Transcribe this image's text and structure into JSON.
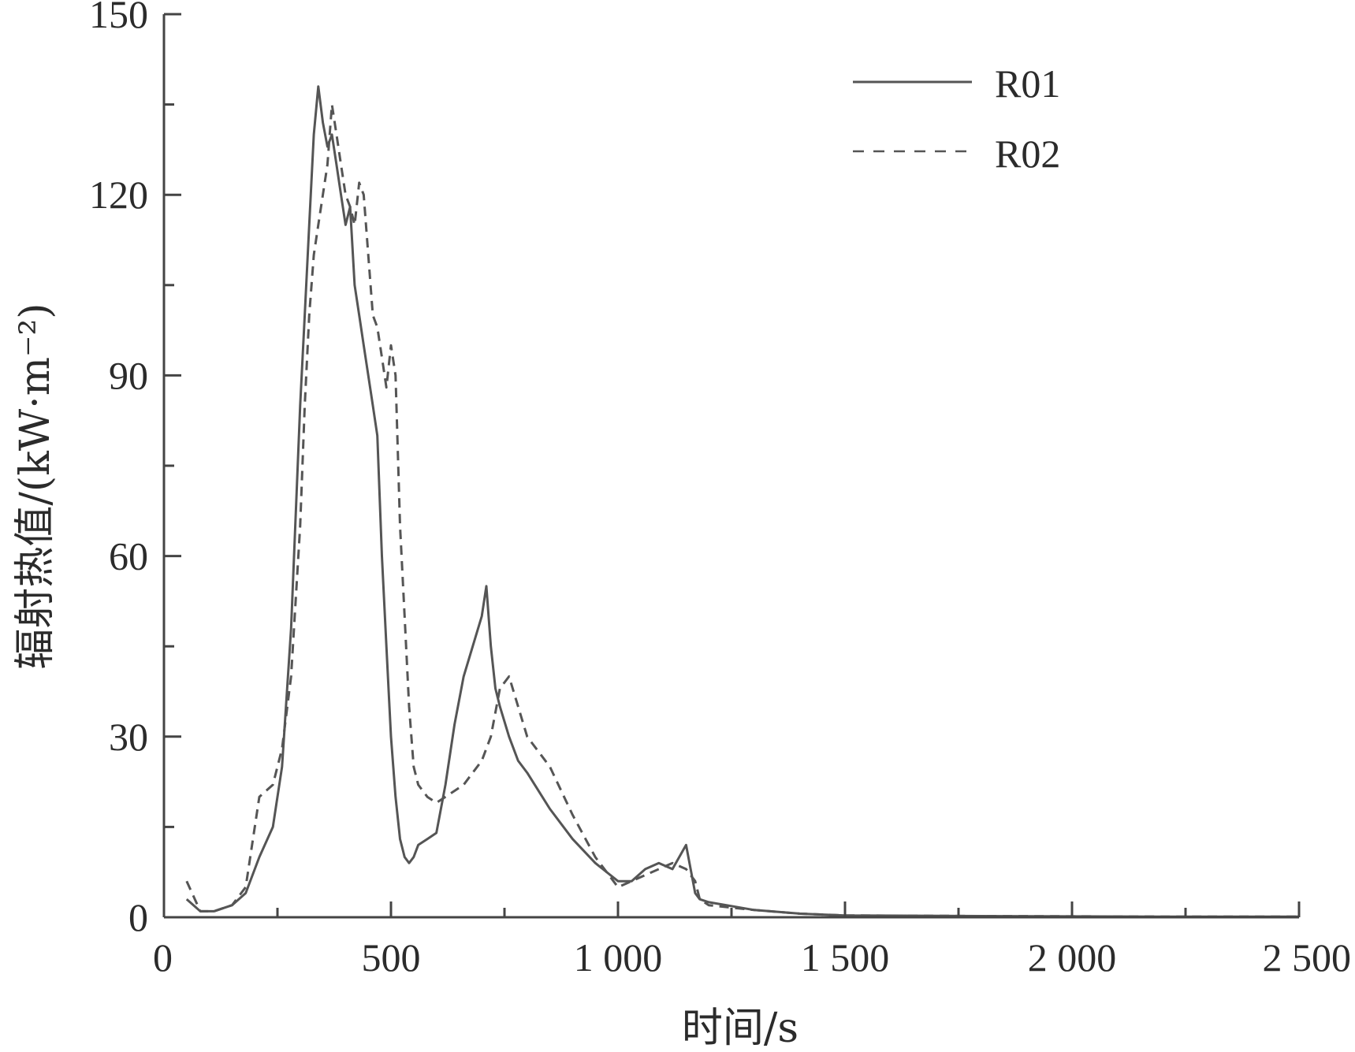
{
  "chart_data": {
    "type": "line",
    "title": "",
    "xlabel": "时间/s",
    "ylabel": "辐射热值/(kW·m⁻²)",
    "xlim": [
      0,
      2500
    ],
    "ylim": [
      0,
      150
    ],
    "x_ticks": [
      0,
      500,
      1000,
      1500,
      2000,
      2500
    ],
    "x_tick_labels": [
      "0",
      "500",
      "1 000",
      "1 500",
      "2 000",
      "2 500"
    ],
    "y_ticks": [
      0,
      30,
      60,
      90,
      120,
      150
    ],
    "y_tick_labels": [
      "0",
      "30",
      "60",
      "90",
      "120",
      "150"
    ],
    "grid": false,
    "legend_position": "top-right",
    "series": [
      {
        "name": "R01",
        "style": "solid",
        "color": "#555555",
        "x": [
          50,
          80,
          110,
          150,
          180,
          210,
          240,
          260,
          280,
          300,
          310,
          320,
          330,
          340,
          350,
          360,
          370,
          380,
          390,
          400,
          410,
          420,
          430,
          440,
          450,
          460,
          470,
          480,
          490,
          500,
          510,
          520,
          530,
          540,
          550,
          560,
          580,
          600,
          620,
          640,
          660,
          680,
          700,
          710,
          720,
          730,
          740,
          760,
          780,
          800,
          850,
          900,
          950,
          1000,
          1030,
          1060,
          1090,
          1120,
          1150,
          1170,
          1180,
          1200,
          1300,
          1400,
          1500,
          1800,
          2200,
          2500
        ],
        "y": [
          3,
          1,
          1,
          2,
          4,
          10,
          15,
          25,
          48,
          85,
          100,
          115,
          130,
          138,
          132,
          128,
          130,
          125,
          120,
          115,
          118,
          105,
          100,
          95,
          90,
          85,
          80,
          60,
          45,
          30,
          20,
          13,
          10,
          9,
          10,
          12,
          13,
          14,
          22,
          32,
          40,
          45,
          50,
          55,
          45,
          38,
          35,
          30,
          26,
          24,
          18,
          13,
          9,
          6,
          6,
          8,
          9,
          8,
          12,
          4,
          3,
          2.5,
          1.2,
          0.6,
          0.3,
          0.2,
          0.1,
          0.1
        ]
      },
      {
        "name": "R02",
        "style": "dashed",
        "color": "#555555",
        "x": [
          50,
          80,
          110,
          150,
          180,
          210,
          240,
          260,
          280,
          300,
          310,
          320,
          330,
          340,
          350,
          360,
          370,
          380,
          390,
          400,
          410,
          420,
          430,
          440,
          450,
          460,
          470,
          480,
          490,
          500,
          510,
          520,
          530,
          540,
          550,
          560,
          580,
          600,
          620,
          640,
          660,
          680,
          700,
          720,
          740,
          760,
          780,
          800,
          850,
          900,
          950,
          1000,
          1030,
          1060,
          1090,
          1120,
          1150,
          1170,
          1180,
          1200,
          1300,
          1400,
          1500,
          1800,
          2200,
          2500
        ],
        "y": [
          6,
          1,
          1,
          2,
          5,
          20,
          22,
          28,
          40,
          65,
          85,
          100,
          110,
          115,
          120,
          125,
          135,
          130,
          125,
          120,
          118,
          115,
          122,
          120,
          110,
          100,
          98,
          93,
          88,
          95,
          90,
          65,
          50,
          35,
          25,
          22,
          20,
          19,
          20,
          21,
          22,
          24,
          26,
          30,
          38,
          40,
          35,
          30,
          25,
          17,
          10,
          5,
          6,
          7,
          8,
          9,
          8,
          6,
          3,
          2,
          1.2,
          0.6,
          0.3,
          0.2,
          0.1,
          0.1
        ]
      }
    ]
  }
}
